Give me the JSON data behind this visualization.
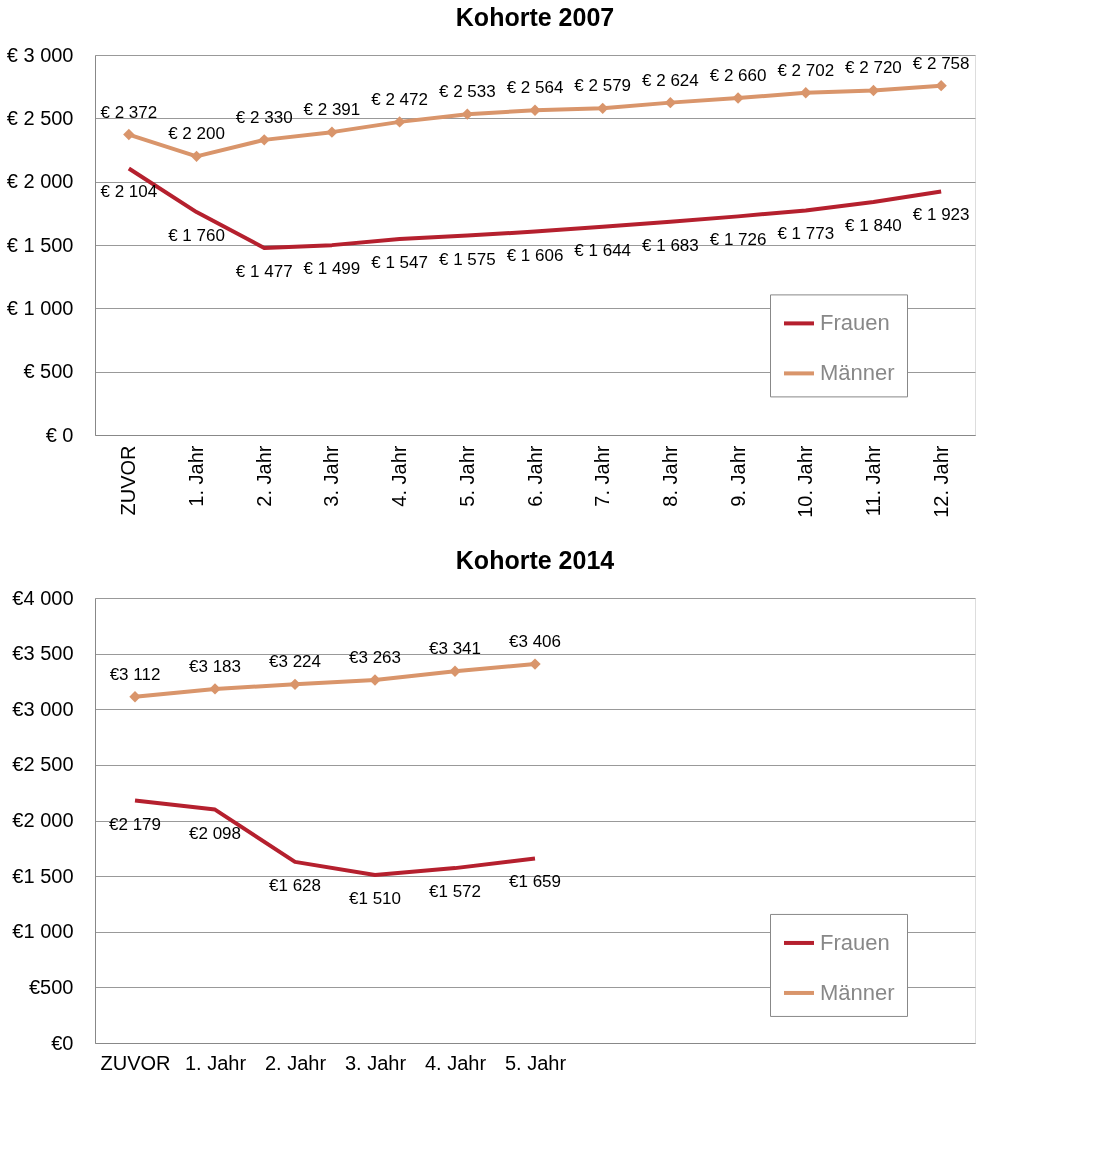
{
  "chart_data": [
    {
      "type": "line",
      "title": "Kohorte 2007",
      "categories": [
        "ZUVOR",
        "1. Jahr",
        "2. Jahr",
        "3. Jahr",
        "4. Jahr",
        "5. Jahr",
        "6. Jahr",
        "7. Jahr",
        "8. Jahr",
        "9. Jahr",
        "10. Jahr",
        "11. Jahr",
        "12. Jahr"
      ],
      "series": [
        {
          "name": "Frauen",
          "color": "#b5202e",
          "marker": "none",
          "values": [
            2104,
            1760,
            1477,
            1499,
            1547,
            1575,
            1606,
            1644,
            1683,
            1726,
            1773,
            1840,
            1923
          ],
          "value_labels": [
            "€ 2 104",
            "€ 1 760",
            "€ 1 477",
            "€ 1 499",
            "€ 1 547",
            "€ 1 575",
            "€ 1 606",
            "€ 1 644",
            "€ 1 683",
            "€ 1 726",
            "€ 1 773",
            "€ 1 840",
            "€ 1 923"
          ]
        },
        {
          "name": "Männer",
          "color": "#d9956b",
          "marker": "diamond",
          "values": [
            2372,
            2200,
            2330,
            2391,
            2472,
            2533,
            2564,
            2579,
            2624,
            2660,
            2702,
            2720,
            2758
          ],
          "value_labels": [
            "€ 2 372",
            "€ 2 200",
            "€ 2 330",
            "€ 2 391",
            "€ 2 472",
            "€ 2 533",
            "€ 2 564",
            "€ 2 579",
            "€ 2 624",
            "€ 2 660",
            "€ 2 702",
            "€ 2 720",
            "€ 2 758"
          ]
        }
      ],
      "ylim": [
        0,
        3000
      ],
      "yticks": [
        {
          "value": 0,
          "label": "€ 0"
        },
        {
          "value": 500,
          "label": "€ 500"
        },
        {
          "value": 1000,
          "label": "€ 1 000"
        },
        {
          "value": 1500,
          "label": "€ 1 500"
        },
        {
          "value": 2000,
          "label": "€ 2 000"
        },
        {
          "value": 2500,
          "label": "€ 2 500"
        },
        {
          "value": 3000,
          "label": "€ 3 000"
        }
      ],
      "grid": "y",
      "legend": "right",
      "line_style": "solid"
    },
    {
      "type": "line",
      "title": "Kohorte 2014",
      "categories": [
        "ZUVOR",
        "1. Jahr",
        "2. Jahr",
        "3. Jahr",
        "4. Jahr",
        "5. Jahr",
        null,
        null,
        null,
        null,
        null
      ],
      "series": [
        {
          "name": "Frauen",
          "color": "#b5202e",
          "marker": "none",
          "values": [
            2179,
            2098,
            1628,
            1510,
            1572,
            1659,
            null,
            null,
            null,
            null,
            null
          ],
          "value_labels": [
            "€2 179",
            "€2 098",
            "€1 628",
            "€1 510",
            "€1 572",
            "€1 659",
            null,
            null,
            null,
            null,
            null
          ]
        },
        {
          "name": "Männer",
          "color": "#d9956b",
          "marker": "diamond",
          "values": [
            3112,
            3183,
            3224,
            3263,
            3341,
            3406,
            null,
            null,
            null,
            null,
            null
          ],
          "value_labels": [
            "€3 112",
            "€3 183",
            "€3 224",
            "€3 263",
            "€3 341",
            "€3 406",
            null,
            null,
            null,
            null,
            null
          ]
        }
      ],
      "ylim": [
        0,
        4000
      ],
      "yticks": [
        {
          "value": 0,
          "label": "€0"
        },
        {
          "value": 500,
          "label": "€500"
        },
        {
          "value": 1000,
          "label": "€1 000"
        },
        {
          "value": 1500,
          "label": "€1 500"
        },
        {
          "value": 2000,
          "label": "€2 000"
        },
        {
          "value": 2500,
          "label": "€2 500"
        },
        {
          "value": 3000,
          "label": "€3 000"
        },
        {
          "value": 3500,
          "label": "€3 500"
        },
        {
          "value": 4000,
          "label": "€4 000"
        }
      ],
      "grid": "y",
      "legend": "bottom right",
      "line_style": "solid"
    }
  ]
}
